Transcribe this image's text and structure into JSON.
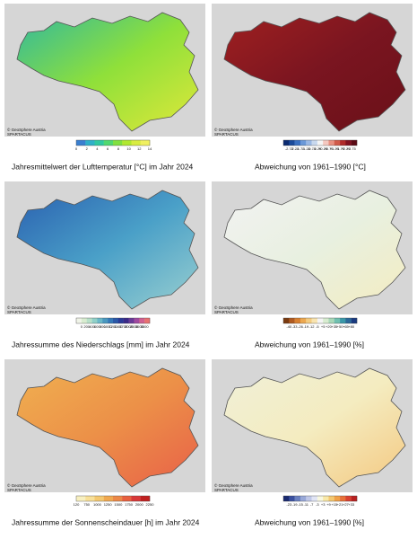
{
  "panels": [
    {
      "caption": "Jahresmittelwert der Lufttemperatur [°C] im Jahr 2024",
      "credit": "© GeoSphere Austria",
      "source": "SPARTACUS",
      "map_colors": [
        "#2fb8a0",
        "#8fe03a",
        "#e0e83a"
      ],
      "colorbar": {
        "ticks": [
          "0",
          "2",
          "4",
          "6",
          "8",
          "10",
          "12",
          "14"
        ],
        "colors": [
          "#3a7fd0",
          "#2fb0c8",
          "#30c8a0",
          "#50d870",
          "#80e040",
          "#b0e830",
          "#d8ec40",
          "#f0f060"
        ]
      }
    },
    {
      "caption": "Abweichung von 1961–1990 [°C]",
      "credit": "© GeoSphere Austria",
      "source": "SPARTACUS",
      "map_colors": [
        "#a02020",
        "#7a1520",
        "#6a1018"
      ],
      "colorbar": {
        "ticks": [
          "-2.75",
          "-2.25",
          "-1.75",
          "-1.25",
          "-0.75",
          "-0.25",
          "+0.25",
          "+0.75",
          "+1.25",
          "+1.75",
          "+2.25",
          "+2.75"
        ],
        "colors": [
          "#0a2a70",
          "#1a4a9a",
          "#3a70c0",
          "#6a98d8",
          "#9ab8e4",
          "#c8d8ee",
          "#f4f4f4",
          "#f4c8c0",
          "#e89080",
          "#d05a4a",
          "#b02a2a",
          "#801020",
          "#5a0a14"
        ]
      }
    },
    {
      "caption": "Jahressumme des Niederschlags [mm] im Jahr 2024",
      "credit": "© GeoSphere Austria",
      "source": "SPARTACUS",
      "map_colors": [
        "#2a60b0",
        "#4aa0c8",
        "#9ad0d0"
      ],
      "colorbar": {
        "ticks": [
          "0",
          "200",
          "400",
          "600",
          "800",
          "1000",
          "1200",
          "1400",
          "1700",
          "2000",
          "2500",
          "3000",
          "3500"
        ],
        "colors": [
          "#f0f4e8",
          "#d8ecd0",
          "#b8e0c8",
          "#90d0c8",
          "#6ab8c8",
          "#4a98c0",
          "#3478b8",
          "#2a58a8",
          "#2a3a98",
          "#3a2a88",
          "#6a3a98",
          "#a04aa0",
          "#d06090",
          "#e87070"
        ]
      }
    },
    {
      "caption": "Abweichung von 1961–1990 [%]",
      "credit": "© GeoSphere Austria",
      "source": "SPARTACUS",
      "map_colors": [
        "#f2f2f2",
        "#e8f0e0",
        "#f4ecc0"
      ],
      "colorbar": {
        "ticks": [
          "-40",
          "-33",
          "-26",
          "-19",
          "-12",
          "-5",
          "+5",
          "+20",
          "+35",
          "+50",
          "+65",
          "+80"
        ],
        "colors": [
          "#7a3a10",
          "#b05a20",
          "#d88030",
          "#eca850",
          "#f4cc80",
          "#f8e4b0",
          "#f4f4f4",
          "#d8ecd0",
          "#a8d8b8",
          "#70c0b0",
          "#3a98a8",
          "#2a6898",
          "#1a3a80"
        ]
      }
    },
    {
      "caption": "Jahressumme der Sonnenscheindauer [h] im Jahr 2024",
      "credit": "© GeoSphere Austria",
      "source": "SPARTACUS",
      "map_colors": [
        "#f0b050",
        "#ec9048",
        "#e86048"
      ],
      "colorbar": {
        "ticks": [
          "120",
          "750",
          "1000",
          "1250",
          "1500",
          "1750",
          "2000",
          "2250"
        ],
        "colors": [
          "#f8f0c0",
          "#f8e098",
          "#f4c870",
          "#f0a850",
          "#ec8848",
          "#e86040",
          "#d83838",
          "#c02020"
        ]
      }
    },
    {
      "caption": "Abweichung von 1961–1990 [%]",
      "credit": "© GeoSphere Austria",
      "source": "SPARTACUS",
      "map_colors": [
        "#f0f0d8",
        "#f4ecc0",
        "#f4c880"
      ],
      "colorbar": {
        "ticks": [
          "-23",
          "-19",
          "-15",
          "-11",
          "-7",
          "-3",
          "+3",
          "+9",
          "+15",
          "+21",
          "+27",
          "+33"
        ],
        "colors": [
          "#1a2a70",
          "#3a50a0",
          "#6a80c0",
          "#98a8d8",
          "#c0c8e8",
          "#e0e4f4",
          "#f8f8e0",
          "#f8e8a8",
          "#f4c870",
          "#f0a048",
          "#e87038",
          "#d84030",
          "#b82020"
        ]
      }
    }
  ]
}
